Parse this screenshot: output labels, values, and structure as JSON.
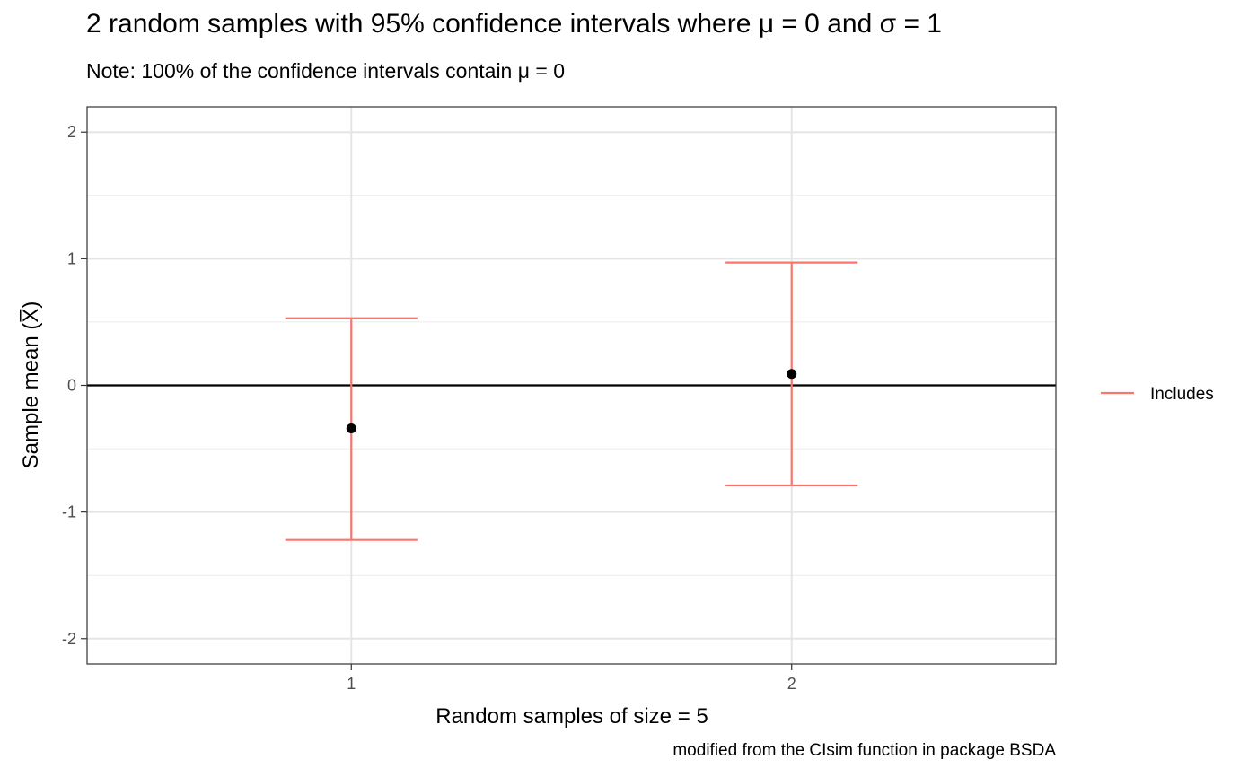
{
  "chart_data": {
    "type": "errorbar",
    "title": "2 random samples with 95% confidence intervals where μ = 0 and σ = 1",
    "subtitle": "Note: 100% of the confidence intervals contain μ = 0",
    "xlabel": "Random samples of size = 5",
    "ylabel": "Sample mean (X̅)",
    "caption": "modified from the CIsim function in package BSDA",
    "x": [
      1,
      2
    ],
    "x_tick_labels": [
      "1",
      "2"
    ],
    "y_ticks": [
      -2,
      -1,
      0,
      1,
      2
    ],
    "y_tick_labels": [
      "-2",
      "-1",
      "0",
      "1",
      "2"
    ],
    "xlim": [
      0.4,
      2.6
    ],
    "ylim": [
      -2.2,
      2.2
    ],
    "reference_line_y": 0,
    "grid": true,
    "series": [
      {
        "name": "Includes",
        "color": "#F8766D",
        "points": [
          {
            "x": 1,
            "mean": -0.34,
            "lower": -1.22,
            "upper": 0.53
          },
          {
            "x": 2,
            "mean": 0.09,
            "lower": -0.79,
            "upper": 0.97
          }
        ]
      }
    ],
    "legend": {
      "position": "right",
      "entries": [
        "Includes"
      ]
    }
  }
}
